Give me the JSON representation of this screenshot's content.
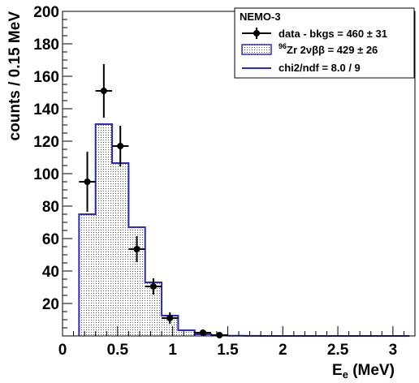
{
  "chart_data": {
    "type": "bar",
    "legend": {
      "position": "top-right",
      "header": "NEMO-3",
      "data_entry": "data - bkgs = 460 ± 31",
      "mc_entry_sup": "96",
      "mc_entry_main": "Zr 2νββ = 429 ± 26",
      "fit_entry": "chi2/ndf = 8.0 / 9"
    },
    "xlabel_main": "E",
    "xlabel_sub": "e",
    "xlabel_unit": " (MeV)",
    "ylabel": "counts / 0.15 MeV",
    "xlim": [
      0,
      3.2
    ],
    "ylim": [
      0,
      200
    ],
    "x_ticks": [
      0,
      0.5,
      1,
      1.5,
      2,
      2.5,
      3
    ],
    "x_tick_labels": [
      "0",
      "0.5",
      "1",
      "1.5",
      "2",
      "2.5",
      "3"
    ],
    "y_ticks": [
      20,
      40,
      60,
      80,
      100,
      120,
      140,
      160,
      180,
      200
    ],
    "y_tick_labels": [
      "20",
      "40",
      "60",
      "80",
      "100",
      "120",
      "140",
      "160",
      "180",
      "200"
    ],
    "grid": false,
    "bin_width": 0.15,
    "mc_histogram": {
      "name": "96Zr 2νββ",
      "bin_edges": [
        0.15,
        0.3,
        0.45,
        0.6,
        0.75,
        0.9,
        1.05,
        1.2,
        1.35,
        1.5,
        1.65,
        1.8,
        1.95,
        2.1,
        2.25,
        2.4,
        2.55,
        2.7,
        2.85,
        3.0,
        3.15
      ],
      "values": [
        75,
        130.5,
        106.5,
        67,
        33,
        12.5,
        3.5,
        1,
        0.3,
        0.1,
        0.05,
        0,
        0,
        0,
        0,
        0,
        0,
        0,
        0,
        0
      ],
      "line_color": "#2b2bbf",
      "fill_color": "#ffffff",
      "hatch_color": "#555555"
    },
    "data_points": {
      "name": "data - bkgs",
      "x": [
        0.225,
        0.375,
        0.525,
        0.675,
        0.825,
        0.975,
        1.275,
        1.425
      ],
      "y": [
        95,
        151,
        117,
        53.5,
        30.5,
        11,
        2,
        0.5
      ],
      "err": [
        18.5,
        16.5,
        12.5,
        8,
        5,
        3.5,
        1.5,
        1
      ],
      "color": "#000000"
    }
  }
}
